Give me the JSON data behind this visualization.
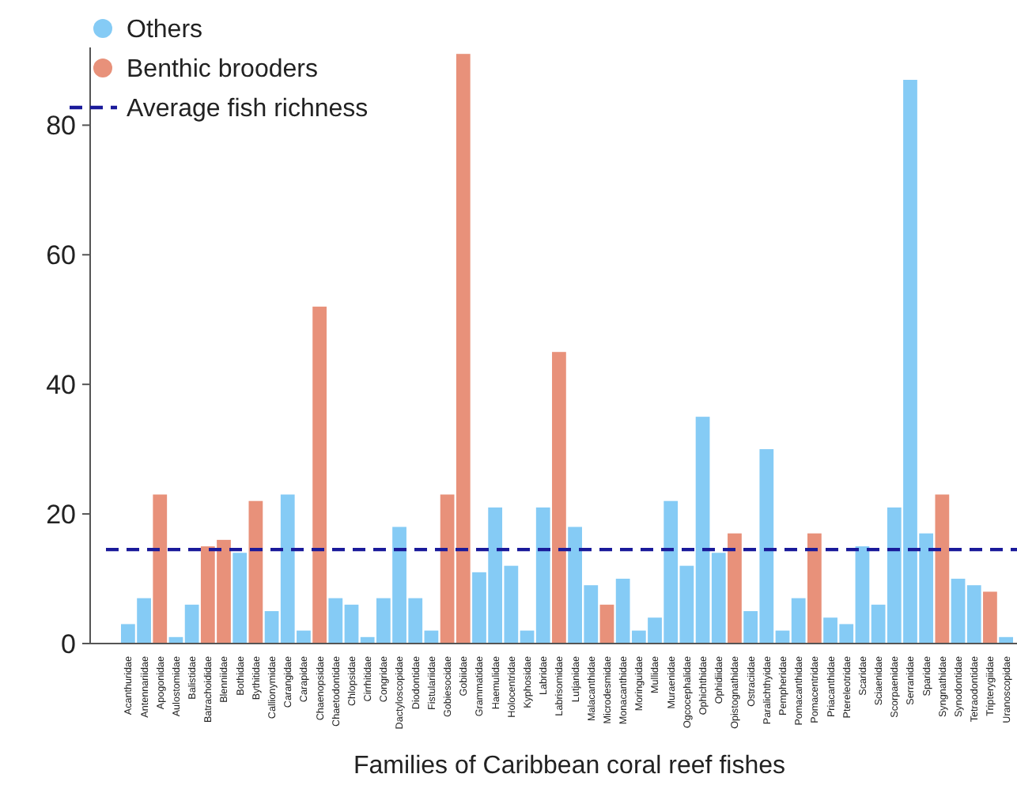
{
  "chart_data": {
    "type": "bar",
    "xlabel": "Families of Caribbean coral reef fishes",
    "categories": [
      "Acanthuridae",
      "Antennariidae",
      "Apogonidae",
      "Aulostomidae",
      "Balistidae",
      "Batrachoididae",
      "Blenniidae",
      "Bothidae",
      "Bythitidae",
      "Callionymidae",
      "Carangidae",
      "Carapidae",
      "Chaenopsidae",
      "Chaetodontidae",
      "Chlopsidae",
      "Cirrhitidae",
      "Congridae",
      "Dactyloscopidae",
      "Diodontidae",
      "Fistulariidae",
      "Gobiesocidae",
      "Gobiidae",
      "Grammatidae",
      "Haemulidae",
      "Holocentridae",
      "Kyphosidae",
      "Labridae",
      "Labrisomidae",
      "Lutjanidae",
      "Malacanthidae",
      "Microdesmidae",
      "Monacanthidae",
      "Moringuidae",
      "Mullidae",
      "Muraenidae",
      "Ogcocephalidae",
      "Ophichthidae",
      "Ophidiidae",
      "Opistognathidae",
      "Ostraciidae",
      "Paralichthyidae",
      "Pempheridae",
      "Pomacanthidae",
      "Pomacentridae",
      "Priacanthidae",
      "Ptereleotridae",
      "Scaridae",
      "Sciaenidae",
      "Scorpaenidae",
      "Serranidae",
      "Sparidae",
      "Syngnathidae",
      "Synodontidae",
      "Tetraodontidae",
      "Tripterygiidae",
      "Uranoscopidae"
    ],
    "series": [
      {
        "name": "Others",
        "color": "#85cbf5",
        "values": [
          3,
          7,
          null,
          1,
          6,
          null,
          null,
          14,
          null,
          5,
          23,
          2,
          null,
          7,
          6,
          1,
          7,
          18,
          7,
          2,
          null,
          null,
          11,
          21,
          12,
          2,
          21,
          null,
          18,
          9,
          null,
          10,
          2,
          4,
          22,
          12,
          35,
          14,
          null,
          5,
          30,
          2,
          7,
          null,
          4,
          3,
          15,
          6,
          21,
          87,
          17,
          null,
          10,
          9,
          null,
          1
        ]
      },
      {
        "name": "Benthic brooders",
        "color": "#e8917a",
        "values": [
          null,
          null,
          23,
          null,
          null,
          15,
          16,
          null,
          22,
          null,
          null,
          null,
          52,
          null,
          null,
          null,
          null,
          null,
          null,
          null,
          23,
          91,
          null,
          null,
          null,
          null,
          null,
          45,
          null,
          null,
          6,
          null,
          null,
          null,
          null,
          null,
          null,
          null,
          17,
          null,
          null,
          null,
          null,
          17,
          null,
          null,
          null,
          null,
          null,
          null,
          null,
          23,
          null,
          null,
          8,
          null
        ]
      }
    ],
    "ref_lines": [
      {
        "axis": "y",
        "value": 14.5,
        "label": "Average fish richness",
        "color": "#1a1a9a",
        "line_style": "dashed"
      }
    ],
    "ylim": [
      0,
      92
    ],
    "yticks": [
      0,
      20,
      40,
      60,
      80
    ],
    "grid": false,
    "legend": "top left"
  }
}
